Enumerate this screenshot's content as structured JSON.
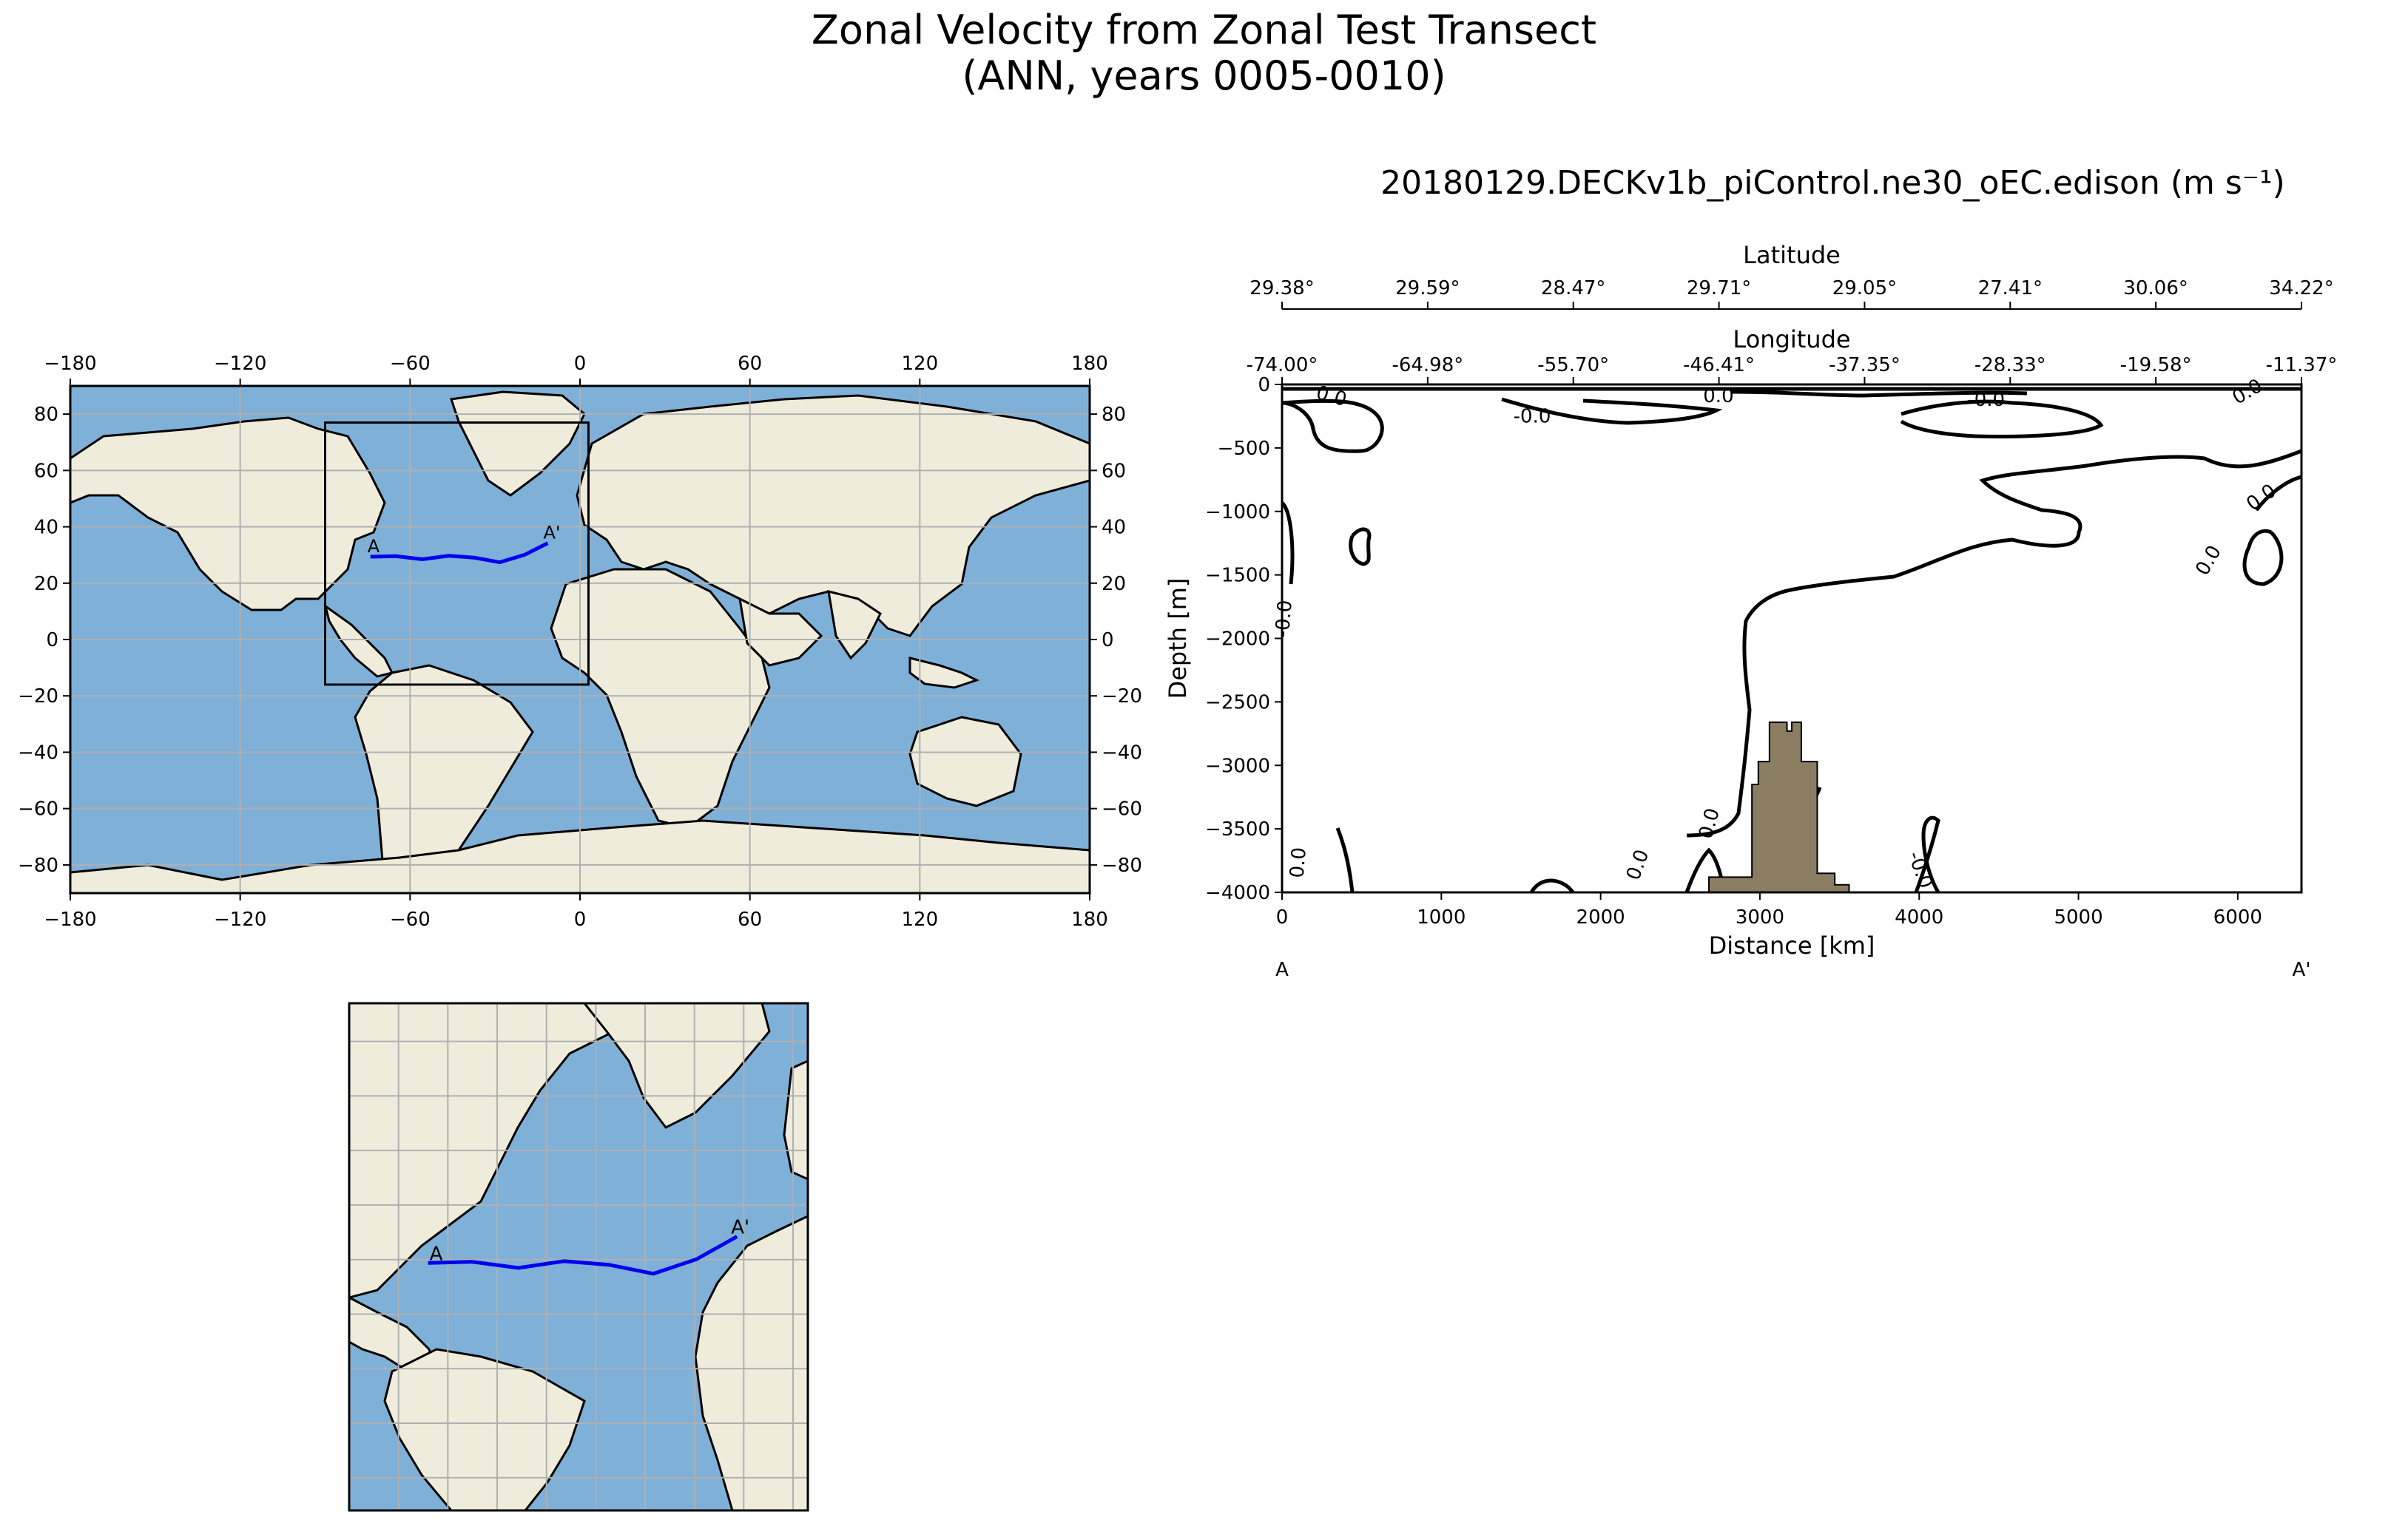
{
  "figure": {
    "title_line1": "Zonal Velocity from Zonal Test Transect",
    "title_line2": "(ANN, years 0005-0010)",
    "subplot_title": "20180129.DECKv1b_piControl.ne30_oEC.edison (m s⁻¹)"
  },
  "colors": {
    "land": "#efecdc",
    "ocean": "#7fb0d8",
    "transect": "#0000ee",
    "grid": "#b0b0b0",
    "topography": "#8b7d62",
    "contour": "#000000"
  },
  "chart_data": [
    {
      "type": "map",
      "name": "global-map",
      "projection": "PlateCarree",
      "lon_range": [
        -180,
        180
      ],
      "lat_range": [
        -90,
        90
      ],
      "x_ticks": [
        -180,
        -120,
        -60,
        0,
        60,
        120,
        180
      ],
      "y_ticks": [
        -80,
        -60,
        -40,
        -20,
        0,
        20,
        40,
        60,
        80
      ],
      "inset_box": {
        "lon": [
          -90,
          3
        ],
        "lat": [
          -16,
          77
        ]
      },
      "transect_lon": [
        -74.0,
        -64.98,
        -55.7,
        -46.41,
        -37.35,
        -28.33,
        -19.58,
        -11.37
      ],
      "transect_lat": [
        29.38,
        29.59,
        28.47,
        29.71,
        29.05,
        27.41,
        30.06,
        34.22
      ],
      "endpoint_labels": [
        "A",
        "A'"
      ],
      "grid": true
    },
    {
      "type": "map",
      "name": "zoom-map",
      "lon_range": [
        -90,
        3
      ],
      "lat_range": [
        -16,
        77
      ],
      "endpoint_labels": [
        "A",
        "A'"
      ],
      "grid": true
    },
    {
      "type": "contour",
      "name": "transect-section",
      "xlabel": "Distance [km]",
      "ylabel": "Depth [m]",
      "xlim": [
        0,
        6400
      ],
      "ylim": [
        -4000,
        0
      ],
      "x_ticks": [
        0,
        1000,
        2000,
        3000,
        4000,
        5000,
        6000
      ],
      "y_ticks": [
        0,
        -500,
        -1000,
        -1500,
        -2000,
        -2500,
        -3000,
        -3500,
        -4000
      ],
      "top_axis_1": {
        "label": "Latitude",
        "ticks": [
          "29.38°",
          "29.59°",
          "28.47°",
          "29.71°",
          "29.05°",
          "27.41°",
          "30.06°",
          "34.22°"
        ]
      },
      "top_axis_2": {
        "label": "Longitude",
        "ticks": [
          "-74.00°",
          "-64.98°",
          "-55.70°",
          "-46.41°",
          "-37.35°",
          "-28.33°",
          "-19.58°",
          "-11.37°"
        ]
      },
      "contour_level": "0.0",
      "contour_labels": [
        "0.0",
        "-0.0",
        "0.0",
        "-0.0",
        "0.0",
        "0.0",
        "0.0",
        "-0.0",
        "0.0",
        "0.0",
        "0.0",
        "-0.0"
      ],
      "topography": {
        "distance_km": [
          2680,
          2680,
          2950,
          2950,
          2990,
          2990,
          3060,
          3060,
          3170,
          3170,
          3200,
          3200,
          3260,
          3260,
          3360,
          3360,
          3470,
          3470,
          3560,
          3560
        ],
        "depth_m": [
          -4000,
          -3880,
          -3880,
          -3150,
          -3150,
          -2970,
          -2970,
          -2660,
          -2660,
          -2730,
          -2730,
          -2660,
          -2660,
          -2970,
          -2970,
          -3850,
          -3850,
          -3940,
          -3940,
          -4000
        ]
      },
      "endpoint_labels": [
        "A",
        "A'"
      ]
    }
  ]
}
